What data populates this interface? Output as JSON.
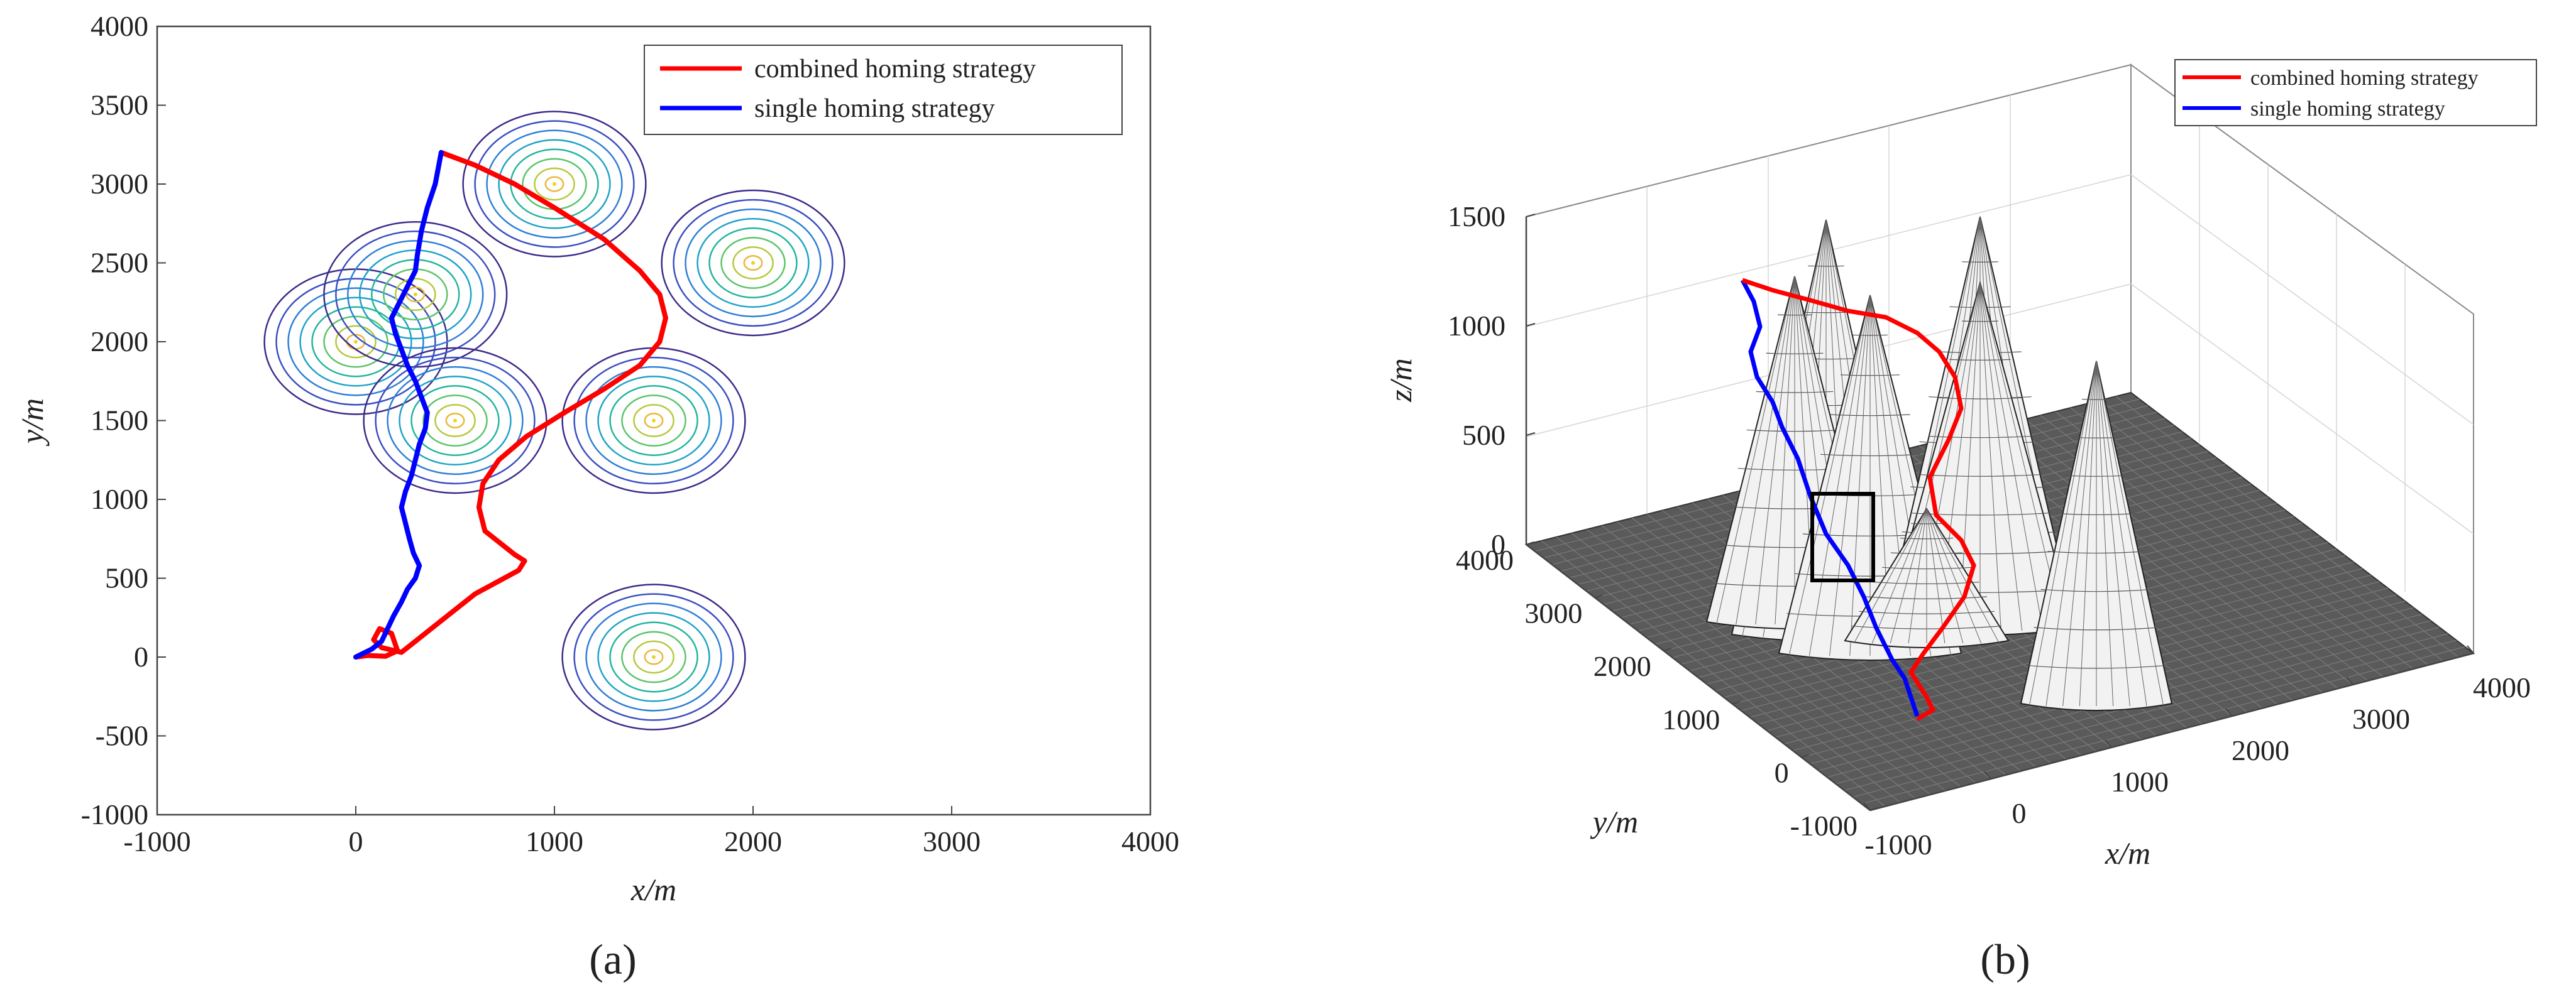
{
  "chart_data": [
    {
      "type": "line",
      "panel_label": "(a)",
      "xlabel": "x/m",
      "ylabel": "y/m",
      "xlim": [
        -1000,
        4000
      ],
      "ylim": [
        -1000,
        4000
      ],
      "xticks": [
        "-1000",
        "0",
        "1000",
        "2000",
        "3000",
        "4000"
      ],
      "yticks": [
        "-1000",
        "-500",
        "0",
        "500",
        "1000",
        "1500",
        "2000",
        "2500",
        "3000",
        "3500",
        "4000"
      ],
      "legend_position": "top-right",
      "obstacles": [
        {
          "x": 0,
          "y": 2000
        },
        {
          "x": 300,
          "y": 2300
        },
        {
          "x": 500,
          "y": 1500
        },
        {
          "x": 1000,
          "y": 3000
        },
        {
          "x": 2000,
          "y": 2500
        },
        {
          "x": 1500,
          "y": 1500
        },
        {
          "x": 1500,
          "y": 0
        }
      ],
      "series": [
        {
          "name": "combined homing strategy",
          "color": "#ff0000",
          "x": [
            0,
            60,
            150,
            210,
            180,
            120,
            90,
            130,
            230,
            400,
            600,
            820,
            850,
            800,
            650,
            620,
            640,
            720,
            860,
            1050,
            1250,
            1430,
            1530,
            1560,
            1530,
            1430,
            1250,
            1000,
            800,
            600,
            430
          ],
          "y": [
            0,
            10,
            5,
            40,
            150,
            180,
            110,
            60,
            30,
            200,
            400,
            550,
            610,
            650,
            800,
            950,
            1100,
            1250,
            1400,
            1550,
            1700,
            1850,
            2000,
            2150,
            2300,
            2450,
            2650,
            2850,
            3000,
            3120,
            3200
          ]
        },
        {
          "name": "single homing strategy",
          "color": "#0000ff",
          "x": [
            0,
            80,
            130,
            160,
            190,
            230,
            260,
            300,
            320,
            290,
            270,
            250,
            230,
            250,
            280,
            300,
            320,
            350,
            360,
            330,
            300,
            260,
            230,
            200,
            180,
            220,
            260,
            300,
            310,
            330,
            360,
            400,
            430
          ],
          "y": [
            0,
            50,
            100,
            180,
            260,
            350,
            430,
            500,
            580,
            660,
            750,
            850,
            950,
            1050,
            1150,
            1250,
            1350,
            1450,
            1550,
            1650,
            1750,
            1850,
            1950,
            2050,
            2150,
            2250,
            2350,
            2450,
            2550,
            2700,
            2850,
            3000,
            3200
          ]
        }
      ]
    },
    {
      "type": "surface",
      "panel_label": "(b)",
      "xlabel": "x/m",
      "ylabel": "y/m",
      "zlabel": "z/m",
      "xticks": [
        "-1000",
        "0",
        "1000",
        "2000",
        "3000",
        "4000"
      ],
      "yticks": [
        "-1000",
        "0",
        "1000",
        "2000",
        "3000",
        "4000"
      ],
      "zticks": [
        "0",
        "500",
        "1000",
        "1500"
      ],
      "legend_position": "top-right",
      "series": [
        {
          "name": "combined homing strategy",
          "color": "#ff0000"
        },
        {
          "name": "single homing strategy",
          "color": "#0000ff"
        }
      ]
    }
  ]
}
